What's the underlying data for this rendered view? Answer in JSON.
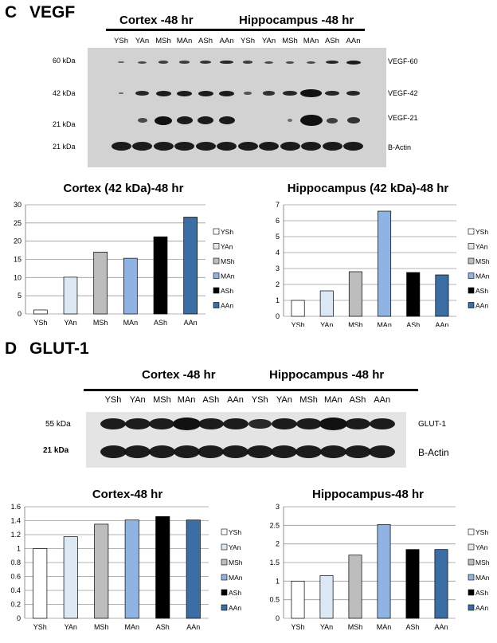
{
  "panels": {
    "c": {
      "letter": "C",
      "name": "VEGF"
    },
    "d": {
      "letter": "D",
      "name": "GLUT-1"
    }
  },
  "lanes": [
    "YSh",
    "YAn",
    "MSh",
    "MAn",
    "ASh",
    "AAn",
    "YSh",
    "YAn",
    "MSh",
    "MAn",
    "ASh",
    "AAn"
  ],
  "blot_c": {
    "group_left": "Cortex -48 hr",
    "group_right": "Hippocampus -48 hr",
    "mw_labels": [
      "60 kDa",
      "42 kDa",
      "21 kDa",
      "21 kDa"
    ],
    "band_labels": [
      "VEGF-60",
      "VEGF-42",
      "VEGF-21",
      "B-Actin"
    ]
  },
  "blot_d": {
    "group_left": "Cortex -48 hr",
    "group_right": "Hippocampus -48 hr",
    "mw_labels": [
      "55 kDa",
      "21 kDa"
    ],
    "band_labels": [
      "GLUT-1",
      "B-Actin"
    ]
  },
  "colors": {
    "YSh": "#ffffff",
    "YAn": "#dde8f5",
    "MSh": "#bdbdbd",
    "MAn": "#8fb4e3",
    "ASh": "#000000",
    "AAn": "#3a6ea5"
  },
  "chart_data": [
    {
      "type": "bar",
      "title": "Cortex (42 kDa)-48 hr",
      "categories": [
        "YSh",
        "YAn",
        "MSh",
        "MAn",
        "ASh",
        "AAn"
      ],
      "values": [
        1.1,
        10.1,
        17.0,
        15.3,
        21.2,
        26.6
      ],
      "ylim": [
        0,
        30
      ],
      "yticks": [
        0,
        5,
        10,
        15,
        20,
        25,
        30
      ],
      "grid": true,
      "legend": "right"
    },
    {
      "type": "bar",
      "title": "Hippocampus (42 kDa)-48 hr",
      "categories": [
        "YSh",
        "YAn",
        "MSh",
        "MAn",
        "ASh",
        "AAn"
      ],
      "values": [
        1.0,
        1.6,
        2.8,
        6.6,
        2.75,
        2.6
      ],
      "ylim": [
        0,
        7
      ],
      "yticks": [
        0,
        1,
        2,
        3,
        4,
        5,
        6,
        7
      ],
      "grid": true,
      "legend": "right"
    },
    {
      "type": "bar",
      "title": "Cortex-48 hr",
      "categories": [
        "YSh",
        "YAn",
        "MSh",
        "MAn",
        "ASh",
        "AAn"
      ],
      "values": [
        1.0,
        1.17,
        1.35,
        1.41,
        1.46,
        1.41
      ],
      "ylim": [
        0,
        1.6
      ],
      "yticks": [
        "0",
        "0.2",
        "0.4",
        "0.6",
        "0.8",
        "1",
        "1.2",
        "1.4",
        "1.6"
      ],
      "grid": true,
      "legend": "right"
    },
    {
      "type": "bar",
      "title": "Hippocampus-48 hr",
      "categories": [
        "YSh",
        "YAn",
        "MSh",
        "MAn",
        "ASh",
        "AAn"
      ],
      "values": [
        1.0,
        1.15,
        1.7,
        2.52,
        1.85,
        1.85
      ],
      "ylim": [
        0,
        3
      ],
      "yticks": [
        "0",
        "0.5",
        "1",
        "1.5",
        "2",
        "2.5",
        "3"
      ],
      "grid": true,
      "legend": "right"
    }
  ]
}
